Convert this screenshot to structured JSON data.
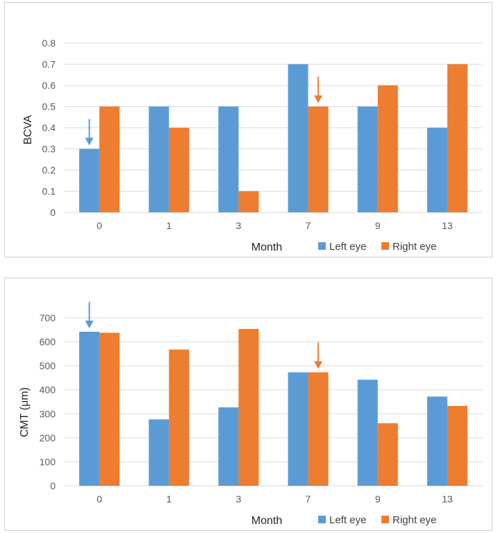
{
  "colors": {
    "left": "#5B9BD5",
    "right": "#ED7D31",
    "grid": "#D9D9D9"
  },
  "chart_data": [
    {
      "type": "bar",
      "categories": [
        "0",
        "1",
        "3",
        "7",
        "9",
        "13"
      ],
      "series": [
        {
          "name": "Left eye",
          "values": [
            0.3,
            0.5,
            0.5,
            0.7,
            0.5,
            0.4
          ]
        },
        {
          "name": "Right eye",
          "values": [
            0.5,
            0.4,
            0.1,
            0.5,
            0.6,
            0.7
          ]
        }
      ],
      "xlabel": "Month",
      "ylabel": "BCVA",
      "ylim": [
        0,
        0.8
      ],
      "yticks": [
        "0",
        "0.1",
        "0.2",
        "0.3",
        "0.4",
        "0.5",
        "0.6",
        "0.7",
        "0.8"
      ],
      "grid": true,
      "legend": "bottom",
      "annotations": [
        {
          "type": "arrow",
          "category": "0",
          "series": "Left eye"
        },
        {
          "type": "arrow",
          "category": "7",
          "series": "Right eye"
        }
      ]
    },
    {
      "type": "bar",
      "categories": [
        "0",
        "1",
        "3",
        "7",
        "9",
        "13"
      ],
      "series": [
        {
          "name": "Left eye",
          "values": [
            642,
            277,
            327,
            473,
            442,
            372
          ]
        },
        {
          "name": "Right eye",
          "values": [
            638,
            568,
            654,
            473,
            261,
            333
          ]
        }
      ],
      "xlabel": "Month",
      "ylabel": "CMT (μm)",
      "ylim": [
        0,
        700
      ],
      "yticks": [
        "0",
        "100",
        "200",
        "300",
        "400",
        "500",
        "600",
        "700"
      ],
      "grid": true,
      "legend": "bottom",
      "annotations": [
        {
          "type": "arrow",
          "category": "0",
          "series": "Left eye"
        },
        {
          "type": "arrow",
          "category": "7",
          "series": "Right eye"
        }
      ]
    }
  ]
}
